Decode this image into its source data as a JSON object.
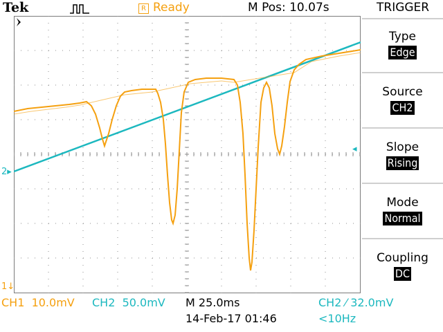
{
  "header": {
    "brand": "Tek",
    "status_icon": "R",
    "status": "Ready",
    "position": "M Pos: 10.07s",
    "menu_title": "TRIGGER"
  },
  "menu": [
    {
      "label": "Type",
      "value": "Edge"
    },
    {
      "label": "Source",
      "value": "CH2"
    },
    {
      "label": "Slope",
      "value": "Rising"
    },
    {
      "label": "Mode",
      "value": "Normal"
    },
    {
      "label": "Coupling",
      "value": "DC"
    }
  ],
  "footer": {
    "ch1_label": "CH1",
    "ch1_scale": "10.0mV",
    "ch2_label": "CH2",
    "ch2_scale": "50.0mV",
    "timebase": "M 25.0ms",
    "trigger_readout": "CH2 ⁄ 32.0mV",
    "datetime": "14-Feb-17 01:46",
    "frequency": "<10Hz"
  },
  "markers": {
    "ch1": "1",
    "ch2": "2"
  },
  "colors": {
    "ch1": "#f5a00f",
    "ch2": "#1cb8bf",
    "grid": "#8c8c8c"
  }
}
